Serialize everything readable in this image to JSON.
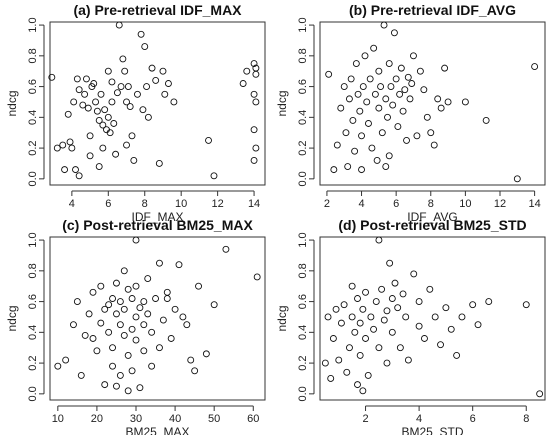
{
  "chart_data": [
    {
      "type": "scatter",
      "title": "(a) Pre-retrieval IDF_MAX",
      "xlabel": "IDF_MAX",
      "ylabel": "ndcg",
      "xlim": [
        2.8,
        14.6
      ],
      "ylim": [
        -0.04,
        1.02
      ],
      "xticks": [
        4,
        6,
        8,
        10,
        12,
        14
      ],
      "yticks": [
        0.0,
        0.2,
        0.4,
        0.6,
        0.8,
        1.0
      ],
      "points": [
        [
          2.9,
          0.66
        ],
        [
          3.2,
          0.2
        ],
        [
          3.5,
          0.22
        ],
        [
          3.6,
          0.06
        ],
        [
          3.8,
          0.42
        ],
        [
          3.9,
          0.24
        ],
        [
          4.0,
          0.2
        ],
        [
          4.1,
          0.5
        ],
        [
          4.2,
          0.06
        ],
        [
          4.3,
          0.65
        ],
        [
          4.4,
          0.58
        ],
        [
          4.4,
          0.02
        ],
        [
          4.6,
          0.48
        ],
        [
          4.7,
          0.55
        ],
        [
          4.8,
          0.65
        ],
        [
          4.9,
          0.46
        ],
        [
          5.0,
          0.28
        ],
        [
          5.0,
          0.15
        ],
        [
          5.1,
          0.6
        ],
        [
          5.2,
          0.62
        ],
        [
          5.3,
          0.5
        ],
        [
          5.4,
          0.44
        ],
        [
          5.5,
          0.38
        ],
        [
          5.5,
          0.08
        ],
        [
          5.6,
          0.55
        ],
        [
          5.7,
          0.35
        ],
        [
          5.7,
          0.2
        ],
        [
          5.8,
          0.45
        ],
        [
          5.9,
          0.32
        ],
        [
          6.0,
          0.7
        ],
        [
          6.0,
          0.4
        ],
        [
          6.1,
          0.3
        ],
        [
          6.2,
          0.63
        ],
        [
          6.2,
          0.5
        ],
        [
          6.3,
          0.36
        ],
        [
          6.4,
          0.16
        ],
        [
          6.5,
          0.56
        ],
        [
          6.6,
          1.0
        ],
        [
          6.7,
          0.6
        ],
        [
          6.8,
          0.78
        ],
        [
          6.9,
          0.7
        ],
        [
          7.0,
          0.5
        ],
        [
          7.0,
          0.22
        ],
        [
          7.1,
          0.6
        ],
        [
          7.2,
          0.47
        ],
        [
          7.3,
          0.28
        ],
        [
          7.4,
          0.12
        ],
        [
          7.6,
          0.55
        ],
        [
          7.8,
          0.94
        ],
        [
          7.9,
          0.45
        ],
        [
          8.0,
          0.86
        ],
        [
          8.1,
          0.6
        ],
        [
          8.2,
          0.4
        ],
        [
          8.4,
          0.72
        ],
        [
          8.6,
          0.64
        ],
        [
          8.8,
          0.1
        ],
        [
          9.0,
          0.7
        ],
        [
          9.1,
          0.55
        ],
        [
          9.3,
          0.62
        ],
        [
          9.6,
          0.5
        ],
        [
          11.5,
          0.25
        ],
        [
          11.8,
          0.02
        ],
        [
          13.4,
          0.62
        ],
        [
          13.6,
          0.7
        ],
        [
          14.0,
          0.75
        ],
        [
          14.1,
          0.72
        ],
        [
          14.0,
          0.55
        ],
        [
          14.1,
          0.5
        ],
        [
          14.0,
          0.32
        ],
        [
          14.1,
          0.2
        ],
        [
          14.0,
          0.12
        ],
        [
          14.1,
          0.68
        ]
      ]
    },
    {
      "type": "scatter",
      "title": "(b) Pre-retrieval IDF_AVG",
      "xlabel": "IDF_AVG",
      "ylabel": "ndcg",
      "xlim": [
        1.6,
        14.6
      ],
      "ylim": [
        -0.04,
        1.02
      ],
      "xticks": [
        2,
        4,
        6,
        8,
        10,
        12,
        14
      ],
      "yticks": [
        0.0,
        0.2,
        0.4,
        0.6,
        0.8,
        1.0
      ],
      "points": [
        [
          2.1,
          0.68
        ],
        [
          2.4,
          0.06
        ],
        [
          2.6,
          0.22
        ],
        [
          2.8,
          0.46
        ],
        [
          3.0,
          0.6
        ],
        [
          3.1,
          0.3
        ],
        [
          3.2,
          0.08
        ],
        [
          3.3,
          0.52
        ],
        [
          3.4,
          0.65
        ],
        [
          3.5,
          0.38
        ],
        [
          3.6,
          0.18
        ],
        [
          3.7,
          0.75
        ],
        [
          3.8,
          0.55
        ],
        [
          3.9,
          0.44
        ],
        [
          4.0,
          0.28
        ],
        [
          4.0,
          0.06
        ],
        [
          4.1,
          0.6
        ],
        [
          4.2,
          0.8
        ],
        [
          4.3,
          0.5
        ],
        [
          4.4,
          0.36
        ],
        [
          4.5,
          0.65
        ],
        [
          4.6,
          0.2
        ],
        [
          4.7,
          0.85
        ],
        [
          4.8,
          0.55
        ],
        [
          4.9,
          0.12
        ],
        [
          5.0,
          0.46
        ],
        [
          5.0,
          0.7
        ],
        [
          5.1,
          0.6
        ],
        [
          5.2,
          0.3
        ],
        [
          5.3,
          1.0
        ],
        [
          5.4,
          0.52
        ],
        [
          5.4,
          0.08
        ],
        [
          5.5,
          0.4
        ],
        [
          5.6,
          0.75
        ],
        [
          5.6,
          0.15
        ],
        [
          5.7,
          0.6
        ],
        [
          5.8,
          0.48
        ],
        [
          5.9,
          0.95
        ],
        [
          6.0,
          0.65
        ],
        [
          6.1,
          0.34
        ],
        [
          6.2,
          0.55
        ],
        [
          6.3,
          0.72
        ],
        [
          6.4,
          0.44
        ],
        [
          6.5,
          0.58
        ],
        [
          6.6,
          0.25
        ],
        [
          6.7,
          0.66
        ],
        [
          6.8,
          0.52
        ],
        [
          6.9,
          0.62
        ],
        [
          7.0,
          0.8
        ],
        [
          7.2,
          0.28
        ],
        [
          7.4,
          0.7
        ],
        [
          7.6,
          0.58
        ],
        [
          7.8,
          0.4
        ],
        [
          8.0,
          0.3
        ],
        [
          8.2,
          0.22
        ],
        [
          8.4,
          0.52
        ],
        [
          8.6,
          0.46
        ],
        [
          8.8,
          0.72
        ],
        [
          9.0,
          0.5
        ],
        [
          10.0,
          0.5
        ],
        [
          11.2,
          0.38
        ],
        [
          13.0,
          0.0
        ],
        [
          14.0,
          0.73
        ]
      ]
    },
    {
      "type": "scatter",
      "title": "(c) Post-retrieval BM25_MAX",
      "xlabel": "BM25_MAX",
      "ylabel": "ndcg",
      "xlim": [
        8,
        63
      ],
      "ylim": [
        -0.04,
        1.02
      ],
      "xticks": [
        10,
        20,
        30,
        40,
        50,
        60
      ],
      "yticks": [
        0.0,
        0.2,
        0.4,
        0.6,
        0.8,
        1.0
      ],
      "points": [
        [
          10,
          0.18
        ],
        [
          12,
          0.22
        ],
        [
          14,
          0.45
        ],
        [
          15,
          0.6
        ],
        [
          16,
          0.12
        ],
        [
          17,
          0.38
        ],
        [
          18,
          0.52
        ],
        [
          19,
          0.36
        ],
        [
          19,
          0.66
        ],
        [
          20,
          0.28
        ],
        [
          21,
          0.46
        ],
        [
          21,
          0.7
        ],
        [
          22,
          0.06
        ],
        [
          22,
          0.55
        ],
        [
          23,
          0.4
        ],
        [
          23,
          0.58
        ],
        [
          24,
          0.62
        ],
        [
          24,
          0.18
        ],
        [
          24,
          0.3
        ],
        [
          25,
          0.52
        ],
        [
          25,
          0.72
        ],
        [
          25,
          0.05
        ],
        [
          26,
          0.45
        ],
        [
          26,
          0.6
        ],
        [
          26,
          0.12
        ],
        [
          27,
          0.38
        ],
        [
          27,
          0.55
        ],
        [
          27,
          0.8
        ],
        [
          28,
          0.68
        ],
        [
          28,
          0.25
        ],
        [
          28,
          0.02
        ],
        [
          29,
          0.42
        ],
        [
          29,
          0.62
        ],
        [
          29,
          0.15
        ],
        [
          30,
          0.5
        ],
        [
          30,
          1.0
        ],
        [
          30,
          0.7
        ],
        [
          30,
          0.35
        ],
        [
          31,
          0.56
        ],
        [
          31,
          0.04
        ],
        [
          32,
          0.45
        ],
        [
          32,
          0.6
        ],
        [
          32,
          0.28
        ],
        [
          33,
          0.75
        ],
        [
          33,
          0.52
        ],
        [
          34,
          0.4
        ],
        [
          34,
          0.18
        ],
        [
          35,
          0.62
        ],
        [
          36,
          0.85
        ],
        [
          36,
          0.3
        ],
        [
          37,
          0.48
        ],
        [
          38,
          0.62
        ],
        [
          38,
          0.66
        ],
        [
          39,
          0.36
        ],
        [
          40,
          0.55
        ],
        [
          41,
          0.84
        ],
        [
          42,
          0.5
        ],
        [
          43,
          0.45
        ],
        [
          44,
          0.22
        ],
        [
          45,
          0.15
        ],
        [
          46,
          0.7
        ],
        [
          48,
          0.26
        ],
        [
          50,
          0.58
        ],
        [
          53,
          0.94
        ],
        [
          61,
          0.76
        ]
      ]
    },
    {
      "type": "scatter",
      "title": "(d) Post-retrieval BM25_STD",
      "xlabel": "BM25_STD",
      "ylabel": "ndcg",
      "xlim": [
        0.3,
        8.7
      ],
      "ylim": [
        -0.04,
        1.02
      ],
      "xticks": [
        2,
        4,
        6,
        8
      ],
      "yticks": [
        0.0,
        0.2,
        0.4,
        0.6,
        0.8,
        1.0
      ],
      "points": [
        [
          0.5,
          0.2
        ],
        [
          0.6,
          0.5
        ],
        [
          0.7,
          0.1
        ],
        [
          0.8,
          0.36
        ],
        [
          0.9,
          0.55
        ],
        [
          1.0,
          0.22
        ],
        [
          1.1,
          0.46
        ],
        [
          1.2,
          0.58
        ],
        [
          1.3,
          0.14
        ],
        [
          1.4,
          0.3
        ],
        [
          1.5,
          0.5
        ],
        [
          1.5,
          0.7
        ],
        [
          1.6,
          0.4
        ],
        [
          1.7,
          0.62
        ],
        [
          1.7,
          0.06
        ],
        [
          1.8,
          0.46
        ],
        [
          1.8,
          0.25
        ],
        [
          1.9,
          0.55
        ],
        [
          1.9,
          0.02
        ],
        [
          2.0,
          0.66
        ],
        [
          2.0,
          0.36
        ],
        [
          2.1,
          0.12
        ],
        [
          2.2,
          0.5
        ],
        [
          2.3,
          0.42
        ],
        [
          2.4,
          0.6
        ],
        [
          2.5,
          0.3
        ],
        [
          2.5,
          1.0
        ],
        [
          2.6,
          0.68
        ],
        [
          2.7,
          0.48
        ],
        [
          2.8,
          0.54
        ],
        [
          2.8,
          0.2
        ],
        [
          2.9,
          0.85
        ],
        [
          3.0,
          0.62
        ],
        [
          3.0,
          0.4
        ],
        [
          3.1,
          0.72
        ],
        [
          3.2,
          0.56
        ],
        [
          3.3,
          0.3
        ],
        [
          3.4,
          0.65
        ],
        [
          3.5,
          0.5
        ],
        [
          3.6,
          0.22
        ],
        [
          3.8,
          0.78
        ],
        [
          4.0,
          0.6
        ],
        [
          4.0,
          0.44
        ],
        [
          4.2,
          0.36
        ],
        [
          4.4,
          0.68
        ],
        [
          4.6,
          0.5
        ],
        [
          4.8,
          0.32
        ],
        [
          5.0,
          0.56
        ],
        [
          5.2,
          0.42
        ],
        [
          5.4,
          0.25
        ],
        [
          5.6,
          0.5
        ],
        [
          6.0,
          0.58
        ],
        [
          6.2,
          0.45
        ],
        [
          6.6,
          0.6
        ],
        [
          8.0,
          0.58
        ],
        [
          8.5,
          0.0
        ]
      ]
    }
  ]
}
